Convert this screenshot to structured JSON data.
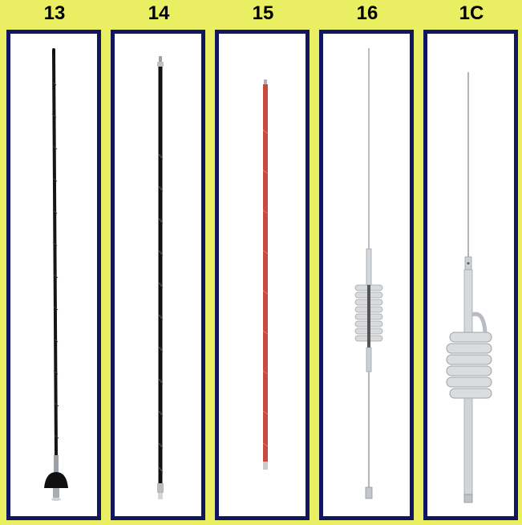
{
  "colors": {
    "background": "#eaee62",
    "panel_border": "#121660",
    "panel_fill": "#ffffff"
  },
  "antennas": [
    {
      "label": "13",
      "style": "black fiberglass whip with spring mount"
    },
    {
      "label": "14",
      "style": "black fiberglass whip"
    },
    {
      "label": "15",
      "style": "red fiberglass whip"
    },
    {
      "label": "16",
      "style": "stainless whip with small coil"
    },
    {
      "label": "1C",
      "style": "stainless whip with large coil"
    }
  ]
}
